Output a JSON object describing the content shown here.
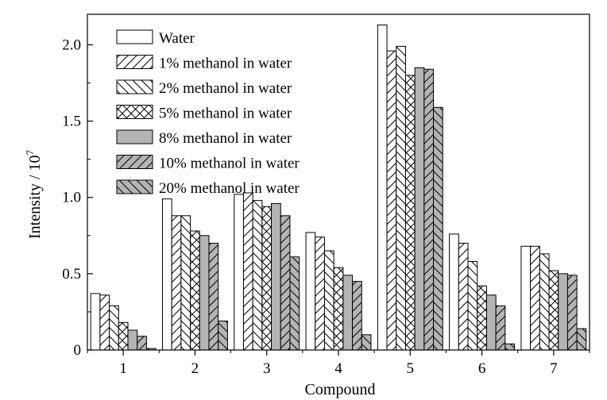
{
  "chart_data": {
    "type": "bar",
    "xlabel": "Compound",
    "ylabel": "Intensity / 10",
    "ylabel_superscript": "7",
    "categories": [
      "1",
      "2",
      "3",
      "4",
      "5",
      "6",
      "7"
    ],
    "ylim": [
      0,
      2.2
    ],
    "yticks": [
      0,
      0.5,
      1.0,
      1.5,
      2.0
    ],
    "ytick_labels": [
      "0",
      "0.5",
      "1.0",
      "1.5",
      "2.0"
    ],
    "grid": false,
    "legend_position": "top-left",
    "series": [
      {
        "name": "Water",
        "fill": "#ffffff",
        "pattern": "none",
        "values": [
          0.37,
          0.99,
          1.02,
          0.77,
          2.13,
          0.76,
          0.68
        ]
      },
      {
        "name": "1% methanol in water",
        "fill": "#ffffff",
        "pattern": "forward",
        "values": [
          0.36,
          0.88,
          1.03,
          0.74,
          1.96,
          0.7,
          0.68
        ]
      },
      {
        "name": "2% methanol in water",
        "fill": "#ffffff",
        "pattern": "back",
        "values": [
          0.29,
          0.88,
          0.98,
          0.65,
          1.99,
          0.58,
          0.63
        ]
      },
      {
        "name": "5% methanol in water",
        "fill": "#ffffff",
        "pattern": "cross",
        "values": [
          0.18,
          0.78,
          0.94,
          0.54,
          1.8,
          0.42,
          0.52
        ]
      },
      {
        "name": "8% methanol in water",
        "fill": "#b4b4b4",
        "pattern": "none",
        "values": [
          0.13,
          0.75,
          0.96,
          0.49,
          1.85,
          0.36,
          0.5
        ]
      },
      {
        "name": "10% methanol in water",
        "fill": "#b4b4b4",
        "pattern": "forward",
        "values": [
          0.09,
          0.7,
          0.88,
          0.45,
          1.84,
          0.29,
          0.49
        ]
      },
      {
        "name": "20% methanol in water",
        "fill": "#b4b4b4",
        "pattern": "back",
        "values": [
          0.01,
          0.19,
          0.61,
          0.1,
          1.59,
          0.04,
          0.14
        ]
      }
    ]
  }
}
